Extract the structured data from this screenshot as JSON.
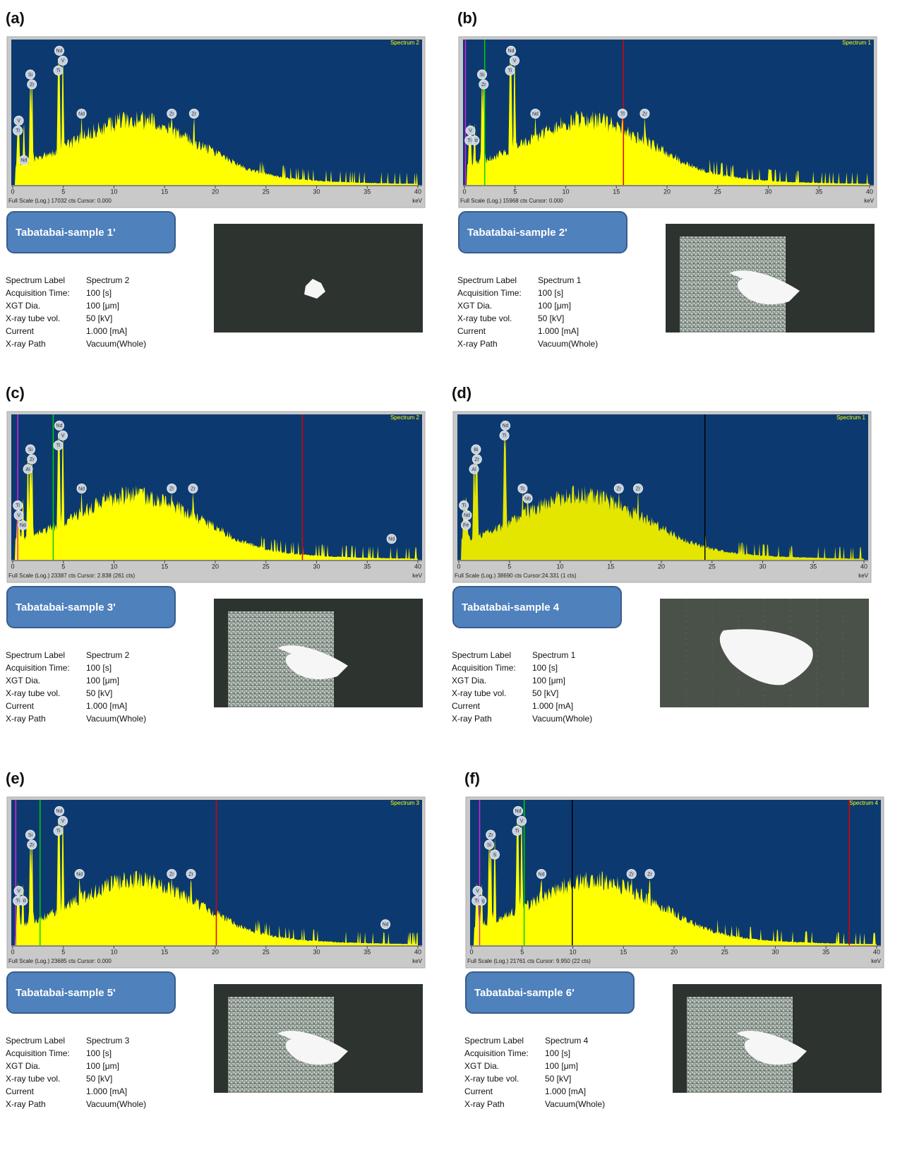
{
  "panels": [
    {
      "letter": "(a)",
      "spectrum": "Spectrum 2",
      "footer": "Full Scale (Log.) 17032 cts Cursor: 0.000",
      "unit": "keV",
      "xlim": [
        0,
        40
      ],
      "xticks": [
        0,
        5,
        10,
        15,
        20,
        25,
        30,
        35,
        40
      ],
      "peaks": [
        {
          "label": "Si",
          "x": 1.74
        },
        {
          "label": "Zr",
          "x": 1.9
        },
        {
          "label": "V",
          "x": 0.6
        },
        {
          "label": "Ti",
          "x": 0.5
        },
        {
          "label": "Nd",
          "x": 1.1
        },
        {
          "label": "Nd",
          "x": 4.6
        },
        {
          "label": "V",
          "x": 4.95
        },
        {
          "label": "Ti",
          "x": 4.5
        },
        {
          "label": "Nd",
          "x": 6.8
        },
        {
          "label": "Zr",
          "x": 15.7
        },
        {
          "label": "Zr",
          "x": 17.9
        }
      ],
      "markers": [],
      "sample": "Tabatabai-sample 1'",
      "info": [
        [
          "Spectrum Label",
          "Spectrum 2"
        ],
        [
          "Acquisition Time:",
          "100 [s]"
        ],
        [
          "XGT Dia.",
          "100 [μm]"
        ],
        [
          "X-ray tube vol.",
          "50 [kV]"
        ],
        [
          "Current",
          "1.000 [mA]"
        ],
        [
          "X-ray Path",
          "Vacuum(Whole)"
        ]
      ]
    },
    {
      "letter": "(b)",
      "spectrum": "Spectrum 1",
      "footer": "Full Scale (Log.) 15968 cts Cursor: 0.000",
      "unit": "keV",
      "xlim": [
        0,
        40
      ],
      "xticks": [
        0,
        5,
        10,
        15,
        20,
        25,
        30,
        35,
        40
      ],
      "peaks": [
        {
          "label": "Si",
          "x": 1.74
        },
        {
          "label": "Zr",
          "x": 1.9
        },
        {
          "label": "Nd",
          "x": 1.0
        },
        {
          "label": "V",
          "x": 0.6
        },
        {
          "label": "Ti",
          "x": 0.5
        },
        {
          "label": "Nd",
          "x": 4.6
        },
        {
          "label": "V",
          "x": 4.95
        },
        {
          "label": "Ti",
          "x": 4.5
        },
        {
          "label": "Nd",
          "x": 7.0
        },
        {
          "label": "Tl",
          "x": 15.6
        },
        {
          "label": "Zr",
          "x": 17.8
        }
      ],
      "markers": [
        {
          "x": 0.1,
          "color": "#e020e0"
        },
        {
          "x": 2.0,
          "color": "#00d000"
        },
        {
          "x": 15.7,
          "color": "#e00000"
        }
      ],
      "sample": "Tabatabai-sample 2'",
      "info": [
        [
          "Spectrum Label",
          "Spectrum 1"
        ],
        [
          "Acquisition Time:",
          "100 [s]"
        ],
        [
          "XGT Dia.",
          "100 [μm]"
        ],
        [
          "X-ray tube vol.",
          "50 [kV]"
        ],
        [
          "Current",
          "1.000 [mA]"
        ],
        [
          "X-ray Path",
          "Vacuum(Whole)"
        ]
      ]
    },
    {
      "letter": "(c)",
      "spectrum": "Spectrum 2",
      "footer": "Full Scale (Log.) 23387 cts Cursor: 2.838  (261 cts)",
      "unit": "keV",
      "xlim": [
        0,
        40
      ],
      "xticks": [
        0,
        5,
        10,
        15,
        20,
        25,
        30,
        35,
        40
      ],
      "peaks": [
        {
          "label": "Si",
          "x": 1.74
        },
        {
          "label": "Zr",
          "x": 1.9
        },
        {
          "label": "Al",
          "x": 1.5
        },
        {
          "label": "Nd",
          "x": 1.0
        },
        {
          "label": "Ti",
          "x": 0.5
        },
        {
          "label": "V",
          "x": 0.6
        },
        {
          "label": "Nd",
          "x": 4.6
        },
        {
          "label": "V",
          "x": 4.95
        },
        {
          "label": "Ti",
          "x": 4.5
        },
        {
          "label": "Nd",
          "x": 6.8
        },
        {
          "label": "Zr",
          "x": 15.7
        },
        {
          "label": "Zr",
          "x": 17.8
        },
        {
          "label": "Nd",
          "x": 37.4
        }
      ],
      "markers": [
        {
          "x": 0.5,
          "color": "#e020e0"
        },
        {
          "x": 4.0,
          "color": "#00d000"
        },
        {
          "x": 28.6,
          "color": "#e00000"
        }
      ],
      "sample": "Tabatabai-sample 3'",
      "info": [
        [
          "Spectrum Label",
          "Spectrum 2"
        ],
        [
          "Acquisition Time:",
          "100 [s]"
        ],
        [
          "XGT Dia.",
          "100 [μm]"
        ],
        [
          "X-ray tube vol.",
          "50 [kV]"
        ],
        [
          "Current",
          "1.000 [mA]"
        ],
        [
          "X-ray Path",
          "Vacuum(Whole)"
        ]
      ]
    },
    {
      "letter": "(d)",
      "spectrum": "Spectrum 1",
      "footer": "Full Scale (Log.) 38690 cts Cursor:24.331  (1 cts)",
      "unit": "keV",
      "xlim": [
        0,
        40
      ],
      "xticks": [
        0,
        5,
        10,
        15,
        20,
        25,
        30,
        35,
        40
      ],
      "peaks": [
        {
          "label": "Nd",
          "x": 4.6
        },
        {
          "label": "Ti",
          "x": 4.5
        },
        {
          "label": "Bi",
          "x": 1.7
        },
        {
          "label": "Zr",
          "x": 1.8
        },
        {
          "label": "Al",
          "x": 1.5
        },
        {
          "label": "Nd",
          "x": 0.8
        },
        {
          "label": "Ti",
          "x": 0.5
        },
        {
          "label": "Fe",
          "x": 0.7
        },
        {
          "label": "Tc",
          "x": 6.3
        },
        {
          "label": "Nb",
          "x": 6.8
        },
        {
          "label": "Zr",
          "x": 15.8
        },
        {
          "label": "Zr",
          "x": 17.7
        }
      ],
      "markers": [
        {
          "x": 24.3,
          "color": "#000000"
        }
      ],
      "sample": "Tabatabai-sample 4",
      "info": [
        [
          "Spectrum Label",
          "Spectrum 1"
        ],
        [
          "Acquisition Time:",
          "100 [s]"
        ],
        [
          "XGT Dia.",
          "100 [μm]"
        ],
        [
          "X-ray tube vol.",
          "50 [kV]"
        ],
        [
          "Current",
          "1.000 [mA]"
        ],
        [
          "X-ray Path",
          "Vacuum(Whole)"
        ]
      ]
    },
    {
      "letter": "(e)",
      "spectrum": "Spectrum 3",
      "footer": "Full Scale (Log.) 23685 cts Cursor: 0.000",
      "unit": "keV",
      "xlim": [
        0,
        40
      ],
      "xticks": [
        0,
        5,
        10,
        15,
        20,
        25,
        30,
        35,
        40
      ],
      "peaks": [
        {
          "label": "Si",
          "x": 1.74
        },
        {
          "label": "Zr",
          "x": 1.9
        },
        {
          "label": "Nd",
          "x": 1.0
        },
        {
          "label": "V",
          "x": 0.6
        },
        {
          "label": "Ti",
          "x": 0.5
        },
        {
          "label": "Nd",
          "x": 4.6
        },
        {
          "label": "V",
          "x": 4.95
        },
        {
          "label": "Ti",
          "x": 4.5
        },
        {
          "label": "Nd",
          "x": 6.6
        },
        {
          "label": "Zr",
          "x": 15.7
        },
        {
          "label": "Zr",
          "x": 17.6
        },
        {
          "label": "Nd",
          "x": 36.8
        }
      ],
      "markers": [
        {
          "x": 0.3,
          "color": "#e020e0"
        },
        {
          "x": 2.7,
          "color": "#00d000"
        },
        {
          "x": 20.1,
          "color": "#e00000"
        }
      ],
      "sample": "Tabatabai-sample 5'",
      "info": [
        [
          "Spectrum Label",
          "Spectrum 3"
        ],
        [
          "Acquisition Time:",
          "100 [s]"
        ],
        [
          "XGT Dia.",
          "100 [μm]"
        ],
        [
          "X-ray tube vol.",
          "50 [kV]"
        ],
        [
          "Current",
          "1.000 [mA]"
        ],
        [
          "X-ray Path",
          "Vacuum(Whole)"
        ]
      ]
    },
    {
      "letter": "(f)",
      "spectrum": "Spectrum 4",
      "footer": "Full Scale (Log.) 21761 cts Cursor: 9.950  (22 cts)",
      "unit": "keV",
      "xlim": [
        0,
        40
      ],
      "xticks": [
        0,
        5,
        10,
        15,
        20,
        25,
        30,
        35,
        40
      ],
      "peaks": [
        {
          "label": "Nd",
          "x": 4.6
        },
        {
          "label": "V",
          "x": 4.95
        },
        {
          "label": "Ti",
          "x": 4.5
        },
        {
          "label": "Zr",
          "x": 1.9
        },
        {
          "label": "Si",
          "x": 1.74
        },
        {
          "label": "Hg",
          "x": 1.0
        },
        {
          "label": "S",
          "x": 2.3
        },
        {
          "label": "V",
          "x": 0.6
        },
        {
          "label": "Ti",
          "x": 0.5
        },
        {
          "label": "Nd",
          "x": 6.9
        },
        {
          "label": "Zr",
          "x": 15.8
        },
        {
          "label": "Zr",
          "x": 17.6
        }
      ],
      "markers": [
        {
          "x": 0.8,
          "color": "#e020e0"
        },
        {
          "x": 5.2,
          "color": "#00d000"
        },
        {
          "x": 9.95,
          "color": "#000000"
        },
        {
          "x": 37.3,
          "color": "#e00000"
        }
      ],
      "sample": "Tabatabai-sample 6'",
      "info": [
        [
          "Spectrum Label",
          "Spectrum 4"
        ],
        [
          "Acquisition Time:",
          "100 [s]"
        ],
        [
          "XGT Dia.",
          "100 [μm]"
        ],
        [
          "X-ray tube vol.",
          "50 [kV]"
        ],
        [
          "Current",
          "1.000 [mA]"
        ],
        [
          "X-ray Path",
          "Vacuum(Whole)"
        ]
      ]
    }
  ]
}
